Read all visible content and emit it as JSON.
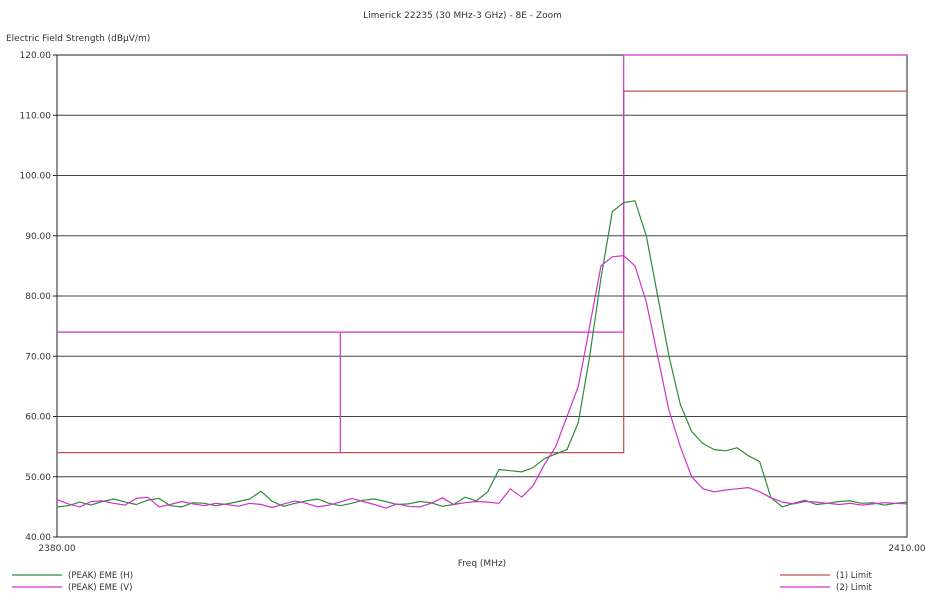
{
  "chart_data": {
    "type": "line",
    "title": "Limerick 22235 (30 MHz-3 GHz) - 8E - Zoom",
    "ylabel": "Electric Field Strength (dBµV/m)",
    "xlabel": "Freq (MHz)",
    "xlim": [
      2380,
      2410
    ],
    "ylim": [
      40,
      120
    ],
    "y_ticks": [
      "40.00",
      "50.00",
      "60.00",
      "70.00",
      "80.00",
      "90.00",
      "100.00",
      "110.00",
      "120.00"
    ],
    "x_ticks": [
      "2380.00",
      "2410.00"
    ],
    "grid": "horizontal",
    "legend_placement": "bottom",
    "series": [
      {
        "name": "(PEAK) EME (H)",
        "color": "#2e8b3a",
        "x": [
          2380,
          2380.4,
          2380.8,
          2381.2,
          2381.6,
          2382,
          2382.4,
          2382.8,
          2383.2,
          2383.6,
          2384,
          2384.4,
          2384.8,
          2385.2,
          2385.6,
          2386,
          2386.4,
          2386.8,
          2387.2,
          2387.6,
          2388,
          2388.4,
          2388.8,
          2389.2,
          2389.6,
          2390,
          2390.4,
          2390.8,
          2391.2,
          2391.6,
          2392,
          2392.4,
          2392.8,
          2393.2,
          2393.6,
          2394,
          2394.4,
          2394.8,
          2395.2,
          2395.6,
          2396,
          2396.4,
          2396.8,
          2397.2,
          2397.6,
          2398,
          2398.4,
          2398.8,
          2399.2,
          2399.6,
          2400,
          2400.4,
          2400.8,
          2401.2,
          2401.6,
          2402,
          2402.4,
          2402.8,
          2403.2,
          2403.6,
          2404,
          2404.4,
          2404.8,
          2405.2,
          2405.6,
          2406,
          2406.4,
          2406.8,
          2407.2,
          2407.6,
          2408,
          2408.4,
          2408.8,
          2409.2,
          2409.6,
          2410
        ],
        "y": [
          45.0,
          45.2,
          45.8,
          45.3,
          45.9,
          46.3,
          45.8,
          45.4,
          46.1,
          46.4,
          45.2,
          45.0,
          45.7,
          45.6,
          45.2,
          45.5,
          45.9,
          46.3,
          47.6,
          45.9,
          45.1,
          45.6,
          46.0,
          46.3,
          45.6,
          45.2,
          45.6,
          46.1,
          46.3,
          45.9,
          45.4,
          45.5,
          45.9,
          45.7,
          45.1,
          45.4,
          46.6,
          46.0,
          47.5,
          51.2,
          51.0,
          50.8,
          51.5,
          53.0,
          53.8,
          54.5,
          59.0,
          70.0,
          83.0,
          94.0,
          95.5,
          95.8,
          90.0,
          80.0,
          70.0,
          62.0,
          57.5,
          55.5,
          54.5,
          54.3,
          54.8,
          53.5,
          52.5,
          46.5,
          45.0,
          45.6,
          46.1,
          45.4,
          45.6,
          45.9,
          46.0,
          45.6,
          45.7,
          45.3,
          45.6,
          45.8
        ]
      },
      {
        "name": "(PEAK) EME (V)",
        "color": "#cc33cc",
        "x": [
          2380,
          2380.4,
          2380.8,
          2381.2,
          2381.6,
          2382,
          2382.4,
          2382.8,
          2383.2,
          2383.6,
          2384,
          2384.4,
          2384.8,
          2385.2,
          2385.6,
          2386,
          2386.4,
          2386.8,
          2387.2,
          2387.6,
          2388,
          2388.4,
          2388.8,
          2389.2,
          2389.6,
          2390,
          2390.4,
          2390.8,
          2391.2,
          2391.6,
          2392,
          2392.4,
          2392.8,
          2393.2,
          2393.6,
          2394,
          2394.4,
          2394.8,
          2395.2,
          2395.6,
          2396,
          2396.4,
          2396.8,
          2397.2,
          2397.6,
          2398,
          2398.4,
          2398.8,
          2399.2,
          2399.6,
          2400,
          2400.4,
          2400.8,
          2401.2,
          2401.6,
          2402,
          2402.4,
          2402.8,
          2403.2,
          2403.6,
          2404,
          2404.4,
          2404.8,
          2405.2,
          2405.6,
          2406,
          2406.4,
          2406.8,
          2407.2,
          2407.6,
          2408,
          2408.4,
          2408.8,
          2409.2,
          2409.6,
          2410
        ],
        "y": [
          46.2,
          45.5,
          45.0,
          45.9,
          46.0,
          45.6,
          45.3,
          46.4,
          46.6,
          45.0,
          45.4,
          45.9,
          45.5,
          45.2,
          45.6,
          45.4,
          45.1,
          45.6,
          45.4,
          44.9,
          45.5,
          46.0,
          45.6,
          45.0,
          45.3,
          45.8,
          46.4,
          45.9,
          45.4,
          44.8,
          45.5,
          45.1,
          45.0,
          45.6,
          46.5,
          45.4,
          45.7,
          45.9,
          45.8,
          45.6,
          48.0,
          46.6,
          48.5,
          52.0,
          55.0,
          60.0,
          65.0,
          75.0,
          85.0,
          86.5,
          86.7,
          85.0,
          79.0,
          70.0,
          61.0,
          55.0,
          50.0,
          48.0,
          47.5,
          47.8,
          48.0,
          48.2,
          47.5,
          46.5,
          45.8,
          45.5,
          45.9,
          45.8,
          45.6,
          45.4,
          45.6,
          45.3,
          45.5,
          45.7,
          45.6,
          45.5
        ]
      },
      {
        "name": "(1) Limit",
        "color": "#c0504d",
        "x": [
          2380,
          2400,
          2400,
          2410
        ],
        "y": [
          54,
          54,
          114,
          114
        ]
      },
      {
        "name": "(2) Limit",
        "color": "#cc33cc",
        "x": [
          2380,
          2390,
          2390,
          2390,
          2390,
          2400,
          2400,
          2410
        ],
        "y": [
          74,
          74,
          54,
          74,
          74,
          74,
          120,
          120
        ]
      }
    ]
  }
}
